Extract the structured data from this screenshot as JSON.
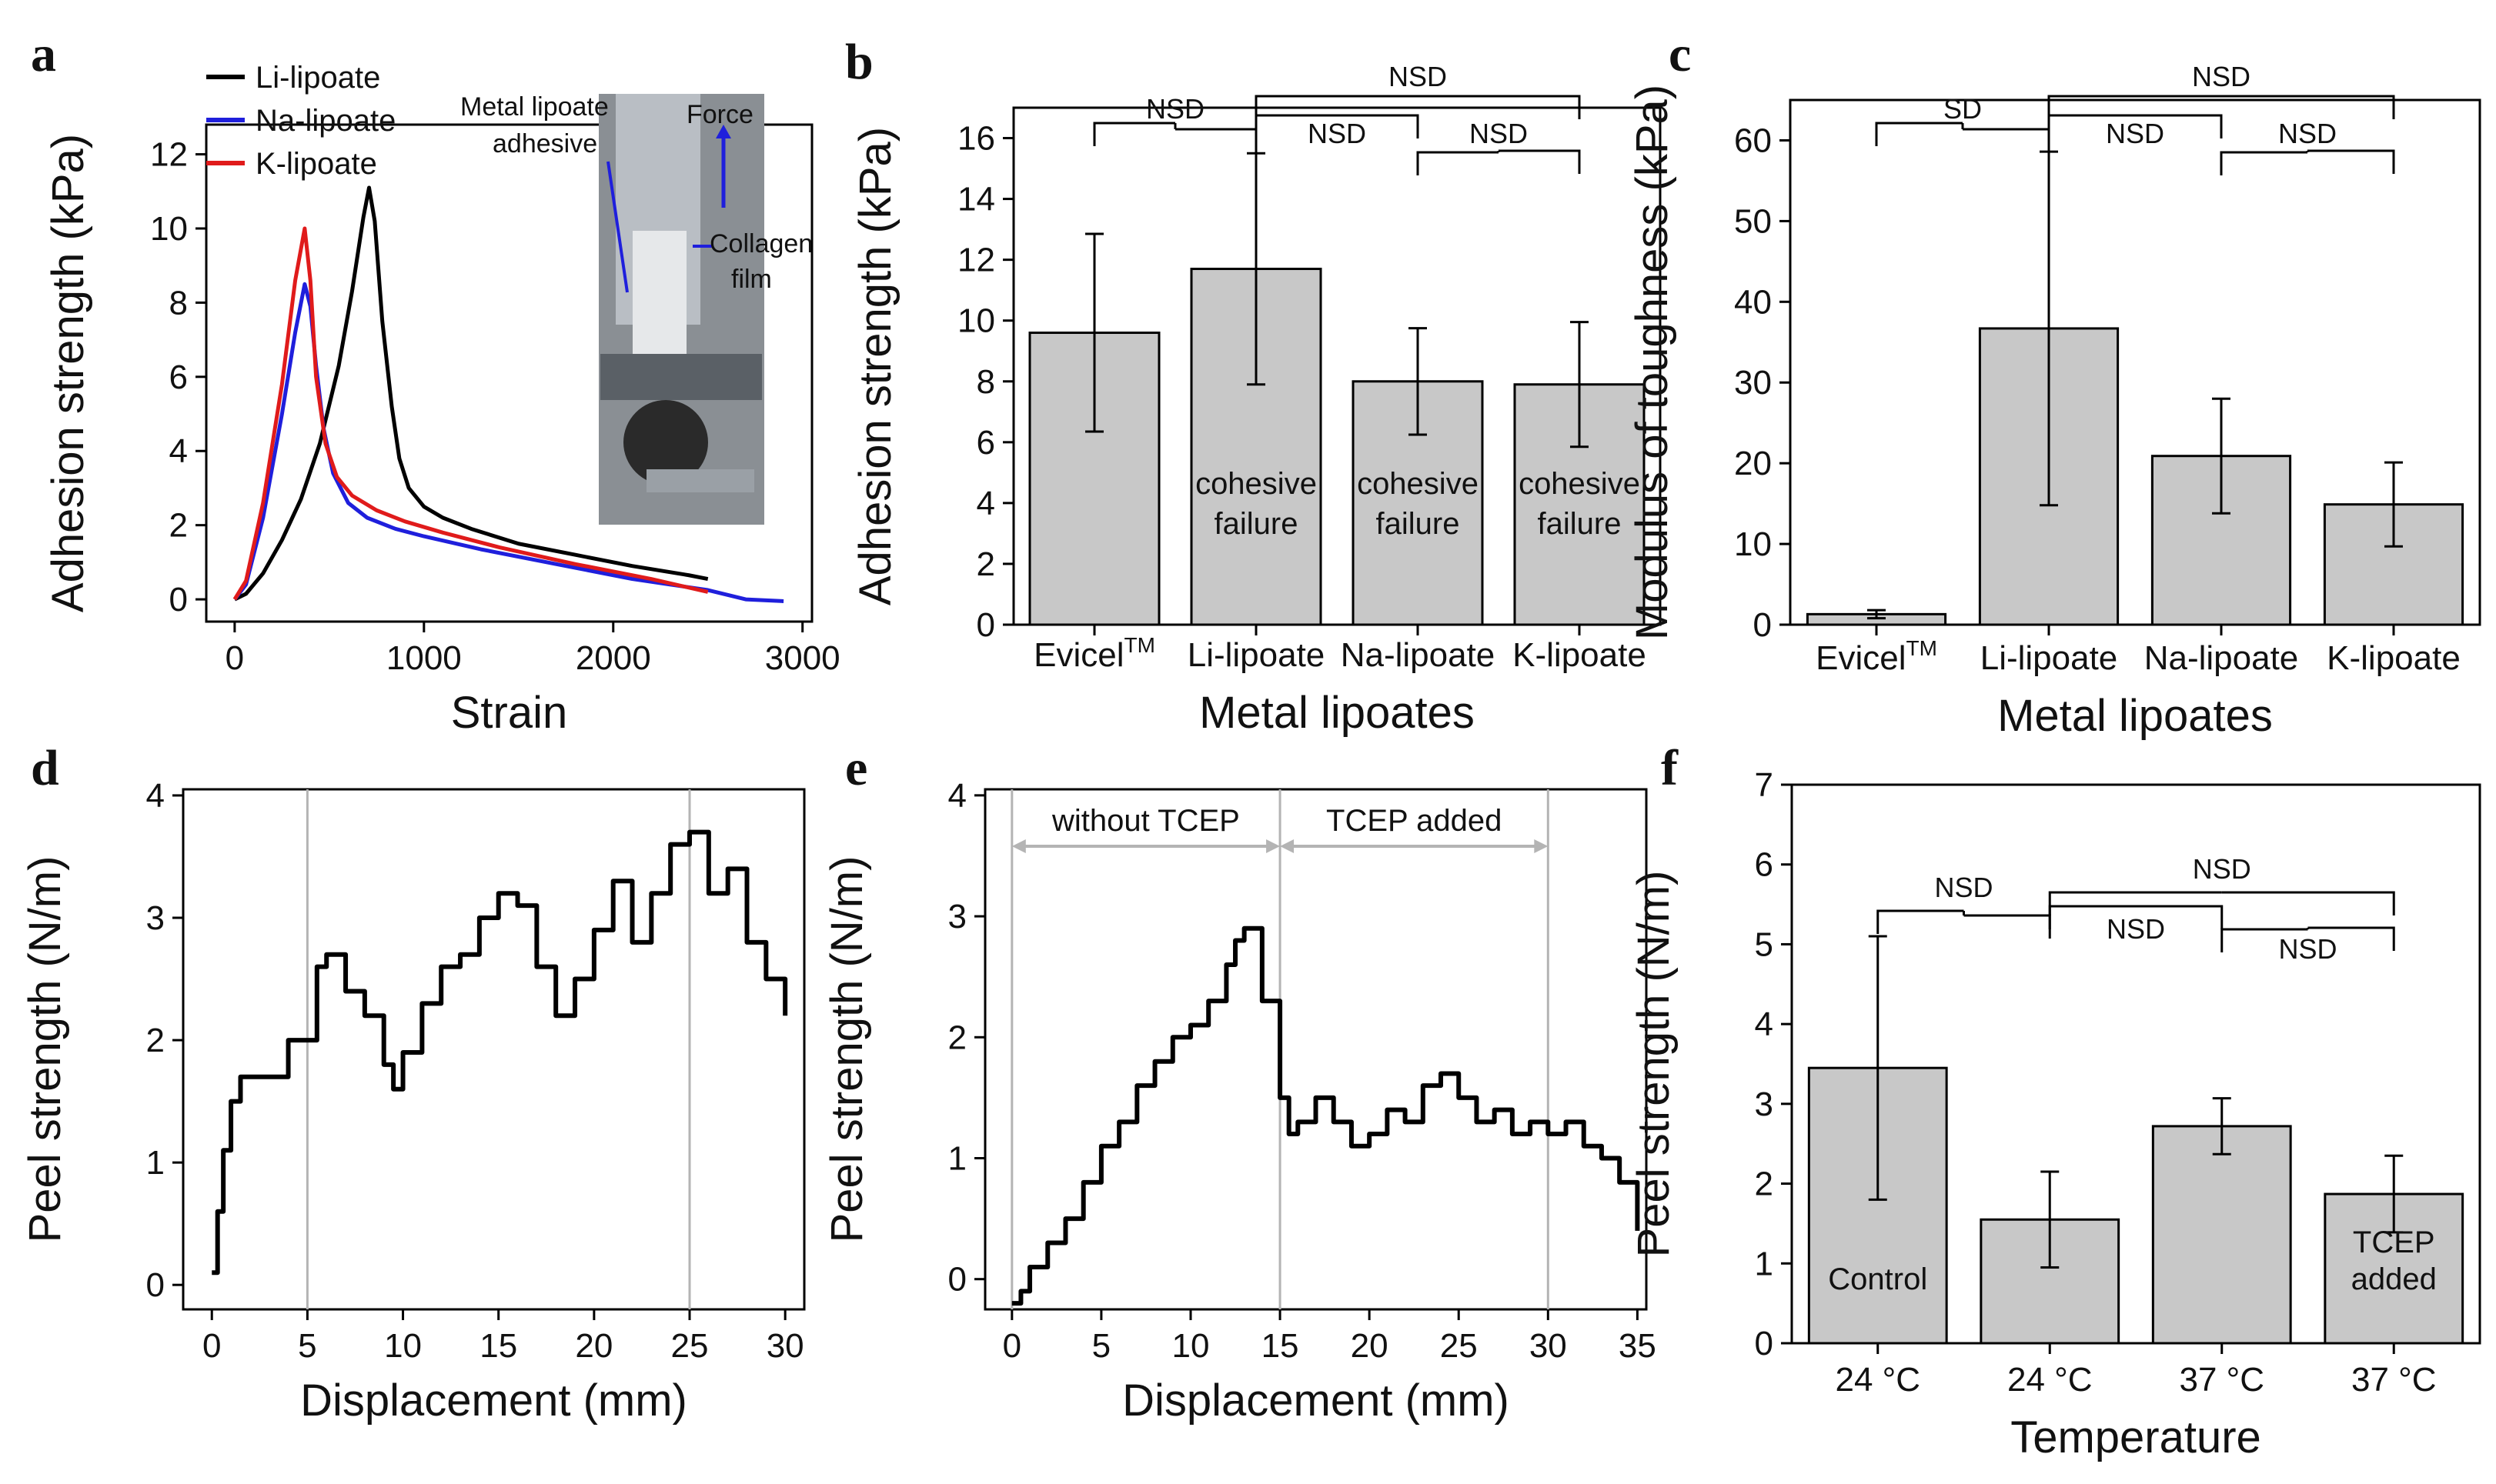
{
  "colors": {
    "black": "#000000",
    "blue": "#1f1fdc",
    "red": "#e01b1b",
    "bar": "#c8c8c8",
    "gray_line": "#b4b4b4"
  },
  "chart_data": [
    {
      "panel": "a",
      "type": "line",
      "xlabel": "Strain",
      "ylabel": "Adhesion strength (kPa)",
      "xlim": [
        -150,
        3050
      ],
      "ylim": [
        -0.6,
        12.8
      ],
      "xticks": [
        0,
        1000,
        2000,
        3000
      ],
      "yticks": [
        0,
        2,
        4,
        6,
        8,
        10,
        12
      ],
      "legend": "top-left",
      "series": [
        {
          "name": "Li-lipoate",
          "color": "#000000",
          "x": [
            0,
            60,
            150,
            250,
            350,
            450,
            550,
            620,
            680,
            710,
            740,
            780,
            830,
            870,
            920,
            1000,
            1100,
            1250,
            1500,
            1800,
            2100,
            2400,
            2500
          ],
          "y": [
            0,
            0.15,
            0.7,
            1.6,
            2.7,
            4.2,
            6.3,
            8.3,
            10.3,
            11.1,
            10.2,
            7.5,
            5.2,
            3.8,
            3.0,
            2.5,
            2.2,
            1.9,
            1.5,
            1.2,
            0.9,
            0.65,
            0.55
          ]
        },
        {
          "name": "Na-lipoate",
          "color": "#1f1fdc",
          "x": [
            0,
            60,
            150,
            250,
            320,
            370,
            400,
            430,
            470,
            520,
            600,
            700,
            850,
            1000,
            1300,
            1700,
            2100,
            2500,
            2700,
            2900
          ],
          "y": [
            0,
            0.4,
            2.2,
            5.0,
            7.2,
            8.5,
            7.9,
            6.3,
            4.6,
            3.4,
            2.6,
            2.2,
            1.9,
            1.7,
            1.35,
            0.95,
            0.55,
            0.25,
            0.0,
            -0.05
          ]
        },
        {
          "name": "K-lipoate",
          "color": "#e01b1b",
          "x": [
            0,
            60,
            150,
            250,
            320,
            370,
            400,
            430,
            480,
            540,
            620,
            750,
            900,
            1100,
            1400,
            1800,
            2200,
            2500
          ],
          "y": [
            0,
            0.5,
            2.6,
            5.8,
            8.6,
            10.0,
            8.6,
            6.0,
            4.2,
            3.3,
            2.8,
            2.4,
            2.1,
            1.8,
            1.4,
            0.95,
            0.55,
            0.2
          ]
        }
      ],
      "inset": {
        "labels": [
          "Metal lipoate adhesive",
          "Force",
          "Collagen film"
        ]
      }
    },
    {
      "panel": "b",
      "type": "bar",
      "xlabel": "Metal lipoates",
      "ylabel": "Adhesion strength (kPa)",
      "ylim": [
        0,
        17
      ],
      "yticks": [
        0,
        2,
        4,
        6,
        8,
        10,
        12,
        14,
        16
      ],
      "categories": [
        "Evicelᵀᴹ",
        "Li-lipoate",
        "Na-lipoate",
        "K-lipoate"
      ],
      "values": [
        9.6,
        11.7,
        8.0,
        7.9
      ],
      "errors": [
        3.25,
        3.8,
        1.75,
        2.05
      ],
      "bar_notes": [
        "",
        "cohesive\nfailure",
        "cohesive\nfailure",
        "cohesive\nfailure"
      ],
      "significance": [
        {
          "from": 1,
          "to": 0,
          "label": "NSD"
        },
        {
          "from": 1,
          "to": 3,
          "label": "NSD"
        },
        {
          "from": 1,
          "to": 2,
          "label": "NSD"
        },
        {
          "from": 2,
          "to": 3,
          "label": "NSD"
        }
      ]
    },
    {
      "panel": "c",
      "type": "bar",
      "xlabel": "Metal lipoates",
      "ylabel": "Modulus of toughness (kPa)",
      "ylim": [
        0,
        65
      ],
      "yticks": [
        0,
        10,
        20,
        30,
        40,
        50,
        60
      ],
      "categories": [
        "Evicelᵀᴹ",
        "Li-lipoate",
        "Na-lipoate",
        "K-lipoate"
      ],
      "values": [
        1.3,
        36.7,
        20.9,
        14.9
      ],
      "errors": [
        0.5,
        21.9,
        7.1,
        5.2
      ],
      "significance": [
        {
          "from": 1,
          "to": 0,
          "label": "SD"
        },
        {
          "from": 1,
          "to": 3,
          "label": "NSD"
        },
        {
          "from": 1,
          "to": 2,
          "label": "NSD"
        },
        {
          "from": 2,
          "to": 3,
          "label": "NSD"
        }
      ]
    },
    {
      "panel": "d",
      "type": "line",
      "xlabel": "Displacement (mm)",
      "ylabel": "Peel strength (N/m)",
      "xlim": [
        -1.5,
        31
      ],
      "ylim": [
        -0.2,
        4.05
      ],
      "xticks": [
        0,
        5,
        10,
        15,
        20,
        25,
        30
      ],
      "yticks": [
        0,
        1,
        2,
        3,
        4
      ],
      "vlines": [
        5,
        25
      ],
      "series": [
        {
          "name": "peel",
          "color": "#000000",
          "x": [
            0,
            0.3,
            0.6,
            1,
            1.5,
            2,
            3,
            4,
            5,
            5.5,
            6,
            7,
            8,
            9,
            9.5,
            10,
            11,
            12,
            13,
            14,
            15,
            16,
            17,
            18,
            19,
            20,
            21,
            22,
            23,
            24,
            25,
            26,
            27,
            28,
            29,
            30
          ],
          "y": [
            0.1,
            0.6,
            1.1,
            1.5,
            1.7,
            1.7,
            1.7,
            2.0,
            2.0,
            2.6,
            2.7,
            2.4,
            2.2,
            1.8,
            1.6,
            1.9,
            2.3,
            2.6,
            2.7,
            3.0,
            3.2,
            3.1,
            2.6,
            2.2,
            2.5,
            2.9,
            3.3,
            2.8,
            3.2,
            3.6,
            3.7,
            3.2,
            3.4,
            2.8,
            2.5,
            2.2
          ]
        }
      ]
    },
    {
      "panel": "e",
      "type": "line",
      "xlabel": "Displacement (mm)",
      "ylabel": "Peel strength (N/m)",
      "xlim": [
        -1.5,
        35.5
      ],
      "ylim": [
        -0.25,
        4.05
      ],
      "xticks": [
        0,
        5,
        10,
        15,
        20,
        25,
        30,
        35
      ],
      "yticks": [
        0,
        1,
        2,
        3,
        4
      ],
      "vlines": [
        0,
        15,
        30
      ],
      "regions": [
        "without TCEP",
        "TCEP added"
      ],
      "series": [
        {
          "name": "peel",
          "color": "#000000",
          "x": [
            0,
            0.5,
            1,
            2,
            3,
            4,
            5,
            6,
            7,
            8,
            9,
            10,
            11,
            12,
            12.5,
            13,
            14,
            15,
            15.5,
            16,
            17,
            18,
            19,
            20,
            21,
            22,
            23,
            24,
            25,
            26,
            27,
            28,
            29,
            30,
            31,
            32,
            33,
            34,
            35
          ],
          "y": [
            -0.2,
            -0.1,
            0.1,
            0.3,
            0.5,
            0.8,
            1.1,
            1.3,
            1.6,
            1.8,
            2.0,
            2.1,
            2.3,
            2.6,
            2.8,
            2.9,
            2.3,
            1.5,
            1.2,
            1.3,
            1.5,
            1.3,
            1.1,
            1.2,
            1.4,
            1.3,
            1.6,
            1.7,
            1.5,
            1.3,
            1.4,
            1.2,
            1.3,
            1.2,
            1.3,
            1.1,
            1.0,
            0.8,
            0.4
          ]
        }
      ]
    },
    {
      "panel": "f",
      "type": "bar",
      "xlabel": "Temperature",
      "ylabel": "Peel strength (N/m)",
      "ylim": [
        0,
        7
      ],
      "yticks": [
        0,
        1,
        2,
        3,
        4,
        5,
        6,
        7
      ],
      "categories": [
        "24 °C",
        "24 °C",
        "37 °C",
        "37 °C"
      ],
      "values": [
        3.45,
        1.55,
        2.72,
        1.87
      ],
      "errors": [
        1.65,
        0.6,
        0.35,
        0.48
      ],
      "bar_notes": [
        "Control",
        "",
        "",
        "TCEP\nadded"
      ],
      "significance": [
        {
          "from": 1,
          "to": 0,
          "label": "NSD"
        },
        {
          "from": 1,
          "to": 3,
          "label": "NSD"
        },
        {
          "from": 1,
          "to": 2,
          "label": "NSD"
        },
        {
          "from": 2,
          "to": 3,
          "label": "NSD"
        }
      ]
    }
  ],
  "panels": [
    "a",
    "b",
    "c",
    "d",
    "e",
    "f"
  ]
}
